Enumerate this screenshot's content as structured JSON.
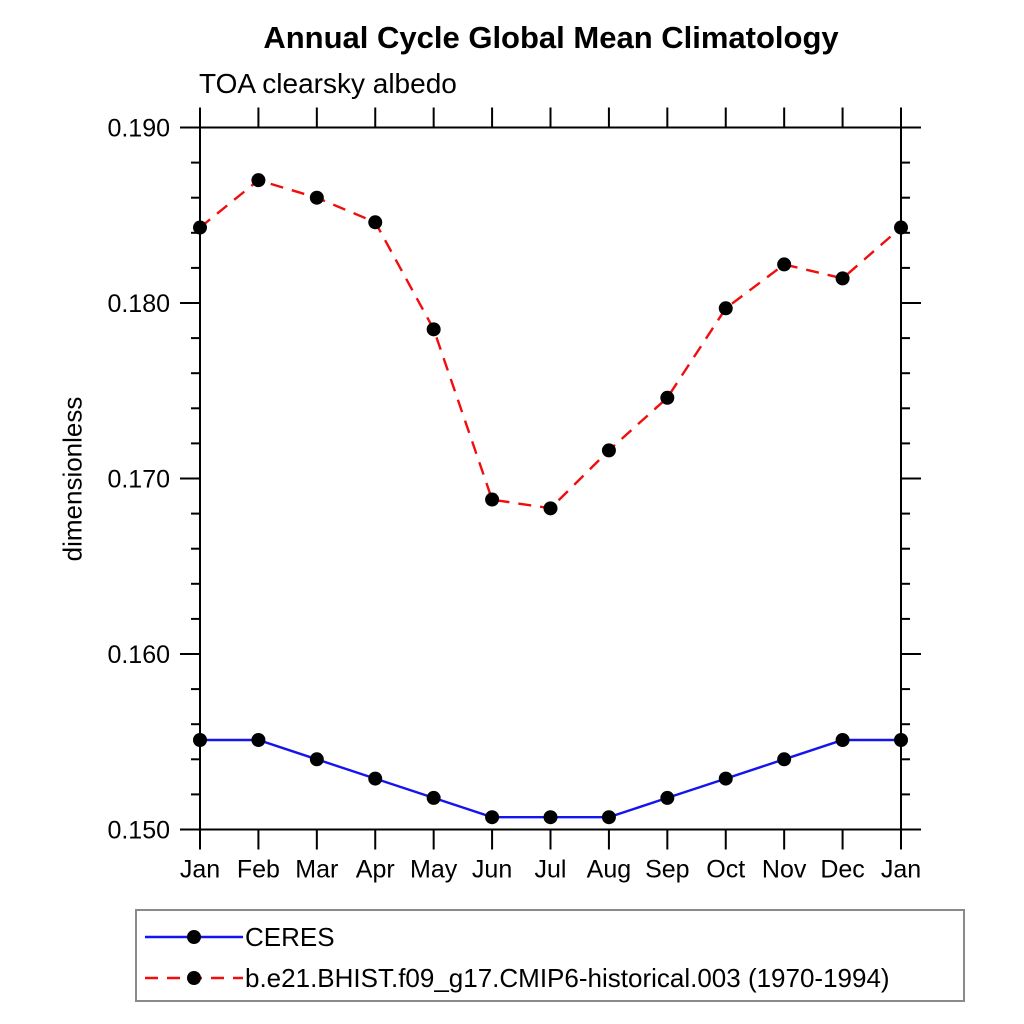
{
  "header": {
    "title": "Annual Cycle Global Mean Climatology",
    "subtitle": "TOA clearsky albedo"
  },
  "chart_data": {
    "type": "line",
    "title": "Annual Cycle Global Mean Climatology",
    "subtitle": "TOA clearsky albedo",
    "xlabel": "",
    "ylabel": "dimensionless",
    "categories": [
      "Jan",
      "Feb",
      "Mar",
      "Apr",
      "May",
      "Jun",
      "Jul",
      "Aug",
      "Sep",
      "Oct",
      "Nov",
      "Dec",
      "Jan"
    ],
    "ylim": [
      0.15,
      0.19
    ],
    "ytick_step": 0.01,
    "yminor_step": 0.002,
    "ytick_labels": [
      "0.150",
      "0.160",
      "0.170",
      "0.180",
      "0.190"
    ],
    "grid": false,
    "legend_position": "bottom-left",
    "series": [
      {
        "name": "CERES",
        "line_color": "#1414ee",
        "line_style": "solid",
        "marker": "filled-circle",
        "marker_color": "#000000",
        "values": [
          0.1551,
          0.1551,
          0.154,
          0.1529,
          0.1518,
          0.1507,
          0.1507,
          0.1507,
          0.1518,
          0.1529,
          0.154,
          0.1551,
          0.1551
        ]
      },
      {
        "name": "b.e21.BHIST.f09_g17.CMIP6-historical.003 (1970-1994)",
        "line_color": "#f20d0d",
        "line_style": "dashed",
        "marker": "filled-circle",
        "marker_color": "#000000",
        "values": [
          0.1843,
          0.187,
          0.186,
          0.1846,
          0.1785,
          0.1688,
          0.1683,
          0.1716,
          0.1746,
          0.1797,
          0.1822,
          0.1814,
          0.1843
        ]
      }
    ]
  },
  "colors": {
    "axis": "#000000",
    "text": "#000000",
    "legend_border": "#8a8a8a",
    "background": "#ffffff"
  }
}
